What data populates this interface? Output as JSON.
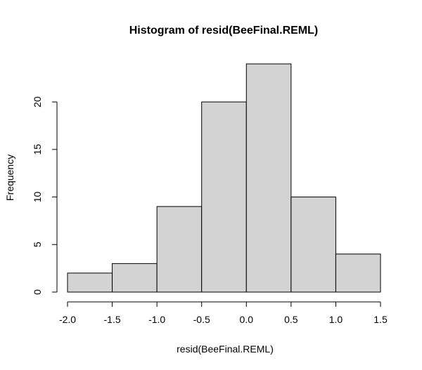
{
  "chart_data": {
    "type": "bar",
    "title": "Histogram of resid(BeeFinal.REML)",
    "xlabel": "resid(BeeFinal.REML)",
    "ylabel": "Frequency",
    "bins": [
      {
        "start": -2.0,
        "end": -1.5,
        "count": 2
      },
      {
        "start": -1.5,
        "end": -1.0,
        "count": 3
      },
      {
        "start": -1.0,
        "end": -0.5,
        "count": 9
      },
      {
        "start": -0.5,
        "end": 0.0,
        "count": 20
      },
      {
        "start": 0.0,
        "end": 0.5,
        "count": 24
      },
      {
        "start": 0.5,
        "end": 1.0,
        "count": 10
      },
      {
        "start": 1.0,
        "end": 1.5,
        "count": 4
      }
    ],
    "xlim": [
      -2.0,
      1.5
    ],
    "ylim": [
      0,
      24
    ],
    "xticks": [
      "-2.0",
      "-1.5",
      "-1.0",
      "-0.5",
      "0.0",
      "0.5",
      "1.0",
      "1.5"
    ],
    "yticks": [
      "0",
      "5",
      "10",
      "15",
      "20"
    ],
    "grid": false,
    "bar_fill": "#d3d3d3",
    "bar_stroke": "#000000"
  }
}
